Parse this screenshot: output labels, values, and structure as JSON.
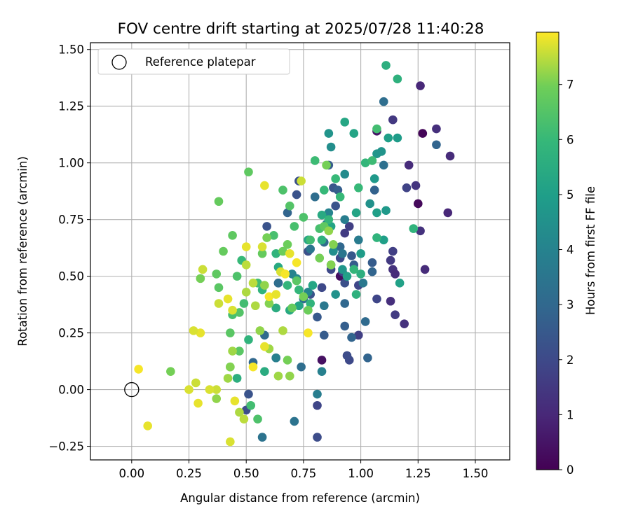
{
  "chart_data": {
    "type": "scatter",
    "title": "FOV centre drift starting at 2025/07/28 11:40:28",
    "xlabel": "Angular distance from reference (arcmin)",
    "ylabel": "Rotation from reference (arcmin)",
    "xlim": [
      -0.18,
      1.65
    ],
    "ylim": [
      -0.31,
      1.53
    ],
    "xticks": [
      "0.00",
      "0.25",
      "0.50",
      "0.75",
      "1.00",
      "1.25",
      "1.50"
    ],
    "yticks": [
      "−0.25",
      "0.00",
      "0.25",
      "0.50",
      "0.75",
      "1.00",
      "1.25",
      "1.50"
    ],
    "grid": true,
    "legend": {
      "position": "top-left",
      "entries": [
        "Reference platepar"
      ]
    },
    "reference_point": {
      "x": 0.0,
      "y": 0.0,
      "label": "Reference platepar"
    },
    "colorbar": {
      "label": "Hours from first FF file",
      "min": 0,
      "max": 7.95,
      "ticks": [
        "0",
        "1",
        "2",
        "3",
        "4",
        "5",
        "6",
        "7"
      ],
      "colormap": "viridis"
    },
    "points": [
      [
        1.27,
        1.13,
        0.1
      ],
      [
        1.25,
        0.82,
        0.2
      ],
      [
        1.07,
        1.14,
        0.5
      ],
      [
        0.91,
        0.5,
        0.3
      ],
      [
        0.83,
        0.13,
        0.4
      ],
      [
        1.26,
        1.34,
        1.0
      ],
      [
        1.33,
        1.15,
        1.2
      ],
      [
        1.39,
        1.03,
        1.1
      ],
      [
        1.38,
        0.78,
        1.0
      ],
      [
        1.28,
        0.53,
        1.1
      ],
      [
        1.26,
        0.7,
        1.3
      ],
      [
        1.21,
        0.99,
        1.1
      ],
      [
        1.24,
        0.9,
        1.4
      ],
      [
        1.14,
        0.53,
        1.3
      ],
      [
        1.15,
        0.51,
        1.1
      ],
      [
        1.13,
        0.39,
        1.2
      ],
      [
        1.19,
        0.29,
        1.3
      ],
      [
        1.15,
        0.33,
        1.6
      ],
      [
        1.13,
        0.57,
        1.5
      ],
      [
        1.14,
        0.61,
        1.7
      ],
      [
        1.14,
        1.19,
        1.5
      ],
      [
        1.2,
        0.89,
        1.8
      ],
      [
        1.07,
        0.4,
        1.9
      ],
      [
        0.99,
        0.46,
        1.9
      ],
      [
        0.99,
        0.24,
        1.7
      ],
      [
        0.93,
        0.69,
        1.6
      ],
      [
        0.95,
        0.72,
        1.7
      ],
      [
        0.95,
        0.13,
        2.0
      ],
      [
        0.94,
        0.15,
        2.1
      ],
      [
        0.91,
        0.58,
        2.0
      ],
      [
        0.92,
        0.52,
        1.8
      ],
      [
        0.87,
        0.53,
        2.0
      ],
      [
        0.93,
        0.47,
        2.2
      ],
      [
        0.83,
        0.45,
        2.0
      ],
      [
        0.81,
        -0.07,
        1.9
      ],
      [
        0.81,
        -0.21,
        2.1
      ],
      [
        0.51,
        -0.02,
        2.3
      ],
      [
        0.5,
        -0.09,
        2.1
      ],
      [
        0.64,
        0.47,
        2.4
      ],
      [
        0.59,
        0.72,
        2.3
      ],
      [
        0.63,
        0.14,
        2.1
      ],
      [
        0.72,
        0.86,
        2.3
      ],
      [
        0.73,
        0.92,
        2.2
      ],
      [
        0.78,
        0.42,
        2.3
      ],
      [
        0.77,
        0.61,
        2.2
      ],
      [
        0.81,
        0.32,
        2.5
      ],
      [
        0.84,
        0.24,
        2.6
      ],
      [
        0.88,
        0.89,
        2.4
      ],
      [
        0.86,
        0.99,
        2.6
      ],
      [
        0.89,
        0.81,
        2.3
      ],
      [
        0.9,
        0.88,
        2.7
      ],
      [
        0.96,
        0.59,
        2.5
      ],
      [
        0.97,
        0.55,
        2.6
      ],
      [
        0.93,
        0.28,
        2.7
      ],
      [
        0.96,
        0.23,
        2.9
      ],
      [
        1.05,
        0.56,
        2.6
      ],
      [
        1.06,
        0.88,
        2.8
      ],
      [
        1.05,
        0.52,
        2.9
      ],
      [
        1.02,
        0.3,
        3.1
      ],
      [
        1.03,
        0.14,
        2.9
      ],
      [
        1.33,
        1.08,
        2.9
      ],
      [
        1.1,
        1.27,
        3.2
      ],
      [
        1.1,
        0.99,
        3.3
      ],
      [
        0.93,
        0.38,
        3.0
      ],
      [
        0.91,
        0.63,
        3.0
      ],
      [
        0.84,
        0.65,
        3.1
      ],
      [
        0.8,
        0.85,
        3.2
      ],
      [
        0.75,
        0.4,
        3.3
      ],
      [
        0.68,
        0.78,
        2.9
      ],
      [
        0.64,
        0.47,
        3.2
      ],
      [
        0.58,
        0.24,
        3.1
      ],
      [
        0.53,
        0.12,
        3.0
      ],
      [
        0.57,
        -0.21,
        3.4
      ],
      [
        0.71,
        -0.14,
        3.4
      ],
      [
        0.74,
        0.1,
        3.2
      ],
      [
        0.78,
        0.62,
        3.5
      ],
      [
        0.84,
        0.37,
        3.6
      ],
      [
        0.92,
        0.6,
        3.5
      ],
      [
        0.99,
        0.66,
        3.7
      ],
      [
        1.01,
        0.47,
        3.6
      ],
      [
        0.93,
        0.75,
        3.8
      ],
      [
        0.85,
        0.73,
        3.9
      ],
      [
        0.86,
        0.78,
        4.0
      ],
      [
        0.83,
        0.08,
        3.9
      ],
      [
        0.81,
        -0.02,
        3.8
      ],
      [
        0.63,
        0.14,
        3.9
      ],
      [
        0.7,
        0.51,
        4.0
      ],
      [
        0.72,
        0.49,
        4.2
      ],
      [
        0.77,
        0.43,
        4.1
      ],
      [
        0.87,
        0.55,
        4.3
      ],
      [
        0.88,
        0.61,
        4.4
      ],
      [
        0.93,
        0.95,
        4.3
      ],
      [
        0.86,
        1.13,
        4.6
      ],
      [
        0.87,
        1.07,
        4.4
      ],
      [
        0.89,
        0.42,
        4.5
      ],
      [
        0.92,
        0.53,
        4.7
      ],
      [
        1.04,
        0.82,
        4.5
      ],
      [
        1.06,
        0.93,
        4.8
      ],
      [
        1.07,
        1.04,
        4.7
      ],
      [
        1.09,
        1.05,
        4.6
      ],
      [
        1.12,
        1.11,
        5.0
      ],
      [
        1.16,
        1.11,
        4.9
      ],
      [
        1.11,
        0.79,
        4.8
      ],
      [
        1.1,
        0.66,
        5.0
      ],
      [
        1.17,
        0.47,
        5.1
      ],
      [
        1.07,
        0.78,
        5.0
      ],
      [
        1.0,
        0.6,
        4.9
      ],
      [
        0.98,
        0.78,
        5.2
      ],
      [
        0.93,
        1.18,
        5.3
      ],
      [
        0.97,
        1.13,
        5.2
      ],
      [
        0.94,
        0.5,
        5.1
      ],
      [
        0.87,
        0.72,
        5.2
      ],
      [
        0.83,
        0.77,
        5.4
      ],
      [
        0.79,
        0.46,
        5.3
      ],
      [
        0.77,
        0.66,
        5.3
      ],
      [
        0.73,
        0.37,
        5.2
      ],
      [
        0.69,
        0.35,
        5.4
      ],
      [
        0.63,
        0.36,
        5.5
      ],
      [
        0.64,
        0.54,
        5.4
      ],
      [
        0.58,
        0.08,
        5.5
      ],
      [
        0.46,
        0.05,
        5.6
      ],
      [
        0.51,
        0.22,
        5.8
      ],
      [
        0.57,
        0.44,
        5.8
      ],
      [
        0.63,
        0.6,
        5.8
      ],
      [
        0.68,
        0.46,
        5.9
      ],
      [
        0.73,
        0.44,
        5.9
      ],
      [
        0.78,
        0.38,
        5.8
      ],
      [
        0.83,
        0.66,
        5.7
      ],
      [
        0.86,
        0.75,
        5.9
      ],
      [
        0.89,
        0.93,
        6.0
      ],
      [
        0.91,
        0.85,
        6.0
      ],
      [
        1.11,
        1.43,
        5.6
      ],
      [
        1.16,
        1.37,
        5.7
      ],
      [
        1.23,
        0.71,
        5.8
      ],
      [
        1.07,
        0.67,
        5.8
      ],
      [
        1.0,
        0.51,
        5.6
      ],
      [
        0.98,
        0.42,
        5.7
      ],
      [
        0.97,
        0.53,
        5.9
      ],
      [
        0.99,
        0.89,
        6.0
      ],
      [
        1.02,
        1.0,
        5.9
      ],
      [
        1.05,
        1.01,
        6.1
      ],
      [
        1.07,
        1.15,
        6.2
      ],
      [
        0.84,
        0.88,
        6.0
      ],
      [
        0.8,
        1.01,
        6.1
      ],
      [
        0.82,
        0.71,
        6.3
      ],
      [
        0.78,
        0.66,
        6.2
      ],
      [
        0.75,
        0.76,
        6.4
      ],
      [
        0.71,
        0.72,
        6.3
      ],
      [
        0.69,
        0.81,
        6.5
      ],
      [
        0.66,
        0.88,
        6.4
      ],
      [
        0.62,
        0.68,
        6.3
      ],
      [
        0.55,
        0.47,
        6.2
      ],
      [
        0.48,
        0.57,
        6.0
      ],
      [
        0.46,
        0.5,
        6.4
      ],
      [
        0.44,
        0.33,
        6.3
      ],
      [
        0.49,
        0.38,
        6.2
      ],
      [
        0.47,
        0.34,
        6.5
      ],
      [
        0.43,
        0.25,
        6.6
      ],
      [
        0.52,
        -0.07,
        6.2
      ],
      [
        0.55,
        -0.13,
        6.4
      ],
      [
        0.43,
        0.1,
        6.5
      ],
      [
        0.47,
        0.17,
        6.6
      ],
      [
        0.38,
        0.45,
        6.6
      ],
      [
        0.37,
        0.51,
        6.7
      ],
      [
        0.4,
        0.61,
        6.8
      ],
      [
        0.44,
        0.68,
        6.7
      ],
      [
        0.38,
        0.83,
        6.8
      ],
      [
        0.51,
        0.96,
        6.7
      ],
      [
        0.57,
        0.6,
        6.8
      ],
      [
        0.66,
        0.61,
        6.9
      ],
      [
        0.68,
        0.64,
        6.9
      ],
      [
        0.7,
        0.36,
        6.8
      ],
      [
        0.72,
        0.48,
        6.6
      ],
      [
        0.75,
        0.41,
        7.0
      ],
      [
        0.77,
        0.35,
        6.9
      ],
      [
        0.82,
        0.58,
        7.0
      ],
      [
        0.84,
        0.72,
        6.7
      ],
      [
        0.87,
        0.55,
        7.1
      ],
      [
        0.85,
        0.99,
        7.0
      ],
      [
        0.88,
        0.64,
        7.1
      ],
      [
        0.86,
        0.7,
        7.2
      ],
      [
        0.59,
        0.67,
        7.0
      ],
      [
        0.58,
        0.46,
        7.2
      ],
      [
        0.6,
        0.38,
        7.1
      ],
      [
        0.56,
        0.26,
        7.2
      ],
      [
        0.6,
        0.18,
        7.3
      ],
      [
        0.68,
        0.13,
        7.0
      ],
      [
        0.69,
        0.06,
        7.2
      ],
      [
        0.66,
        0.26,
        7.4
      ],
      [
        0.64,
        0.06,
        7.3
      ],
      [
        0.54,
        0.37,
        7.4
      ],
      [
        0.53,
        0.47,
        7.5
      ],
      [
        0.5,
        0.43,
        7.4
      ],
      [
        0.5,
        0.55,
        7.5
      ],
      [
        0.44,
        0.17,
        7.3
      ],
      [
        0.47,
        -0.1,
        7.4
      ],
      [
        0.49,
        -0.13,
        7.5
      ],
      [
        0.43,
        0.1,
        7.1
      ],
      [
        0.42,
        0.05,
        7.3
      ],
      [
        0.37,
        -0.04,
        7.2
      ],
      [
        0.37,
        0.0,
        7.6
      ],
      [
        0.38,
        0.38,
        7.6
      ],
      [
        0.34,
        0.0,
        7.7
      ],
      [
        0.31,
        0.53,
        7.6
      ],
      [
        0.3,
        0.49,
        7.0
      ],
      [
        0.3,
        0.25,
        7.8
      ],
      [
        0.27,
        0.26,
        7.7
      ],
      [
        0.29,
        -0.06,
        7.8
      ],
      [
        0.28,
        0.03,
        7.6
      ],
      [
        0.25,
        0.0,
        7.7
      ],
      [
        0.17,
        0.08,
        7.0
      ],
      [
        0.03,
        0.09,
        7.9
      ],
      [
        0.07,
        -0.16,
        7.8
      ],
      [
        0.43,
        -0.23,
        7.7
      ],
      [
        0.45,
        -0.05,
        7.8
      ],
      [
        0.5,
        0.63,
        7.8
      ],
      [
        0.57,
        0.63,
        7.7
      ],
      [
        0.58,
        0.9,
        7.8
      ],
      [
        0.6,
        0.41,
        7.9
      ],
      [
        0.63,
        0.42,
        7.8
      ],
      [
        0.65,
        0.52,
        7.7
      ],
      [
        0.67,
        0.51,
        7.9
      ],
      [
        0.69,
        0.6,
        7.8
      ],
      [
        0.72,
        0.56,
        7.9
      ],
      [
        0.74,
        0.92,
        7.6
      ],
      [
        0.77,
        0.25,
        7.9
      ],
      [
        0.58,
        0.19,
        7.8
      ],
      [
        0.53,
        0.1,
        7.9
      ],
      [
        0.44,
        0.35,
        7.7
      ],
      [
        0.42,
        0.4,
        7.8
      ]
    ]
  }
}
